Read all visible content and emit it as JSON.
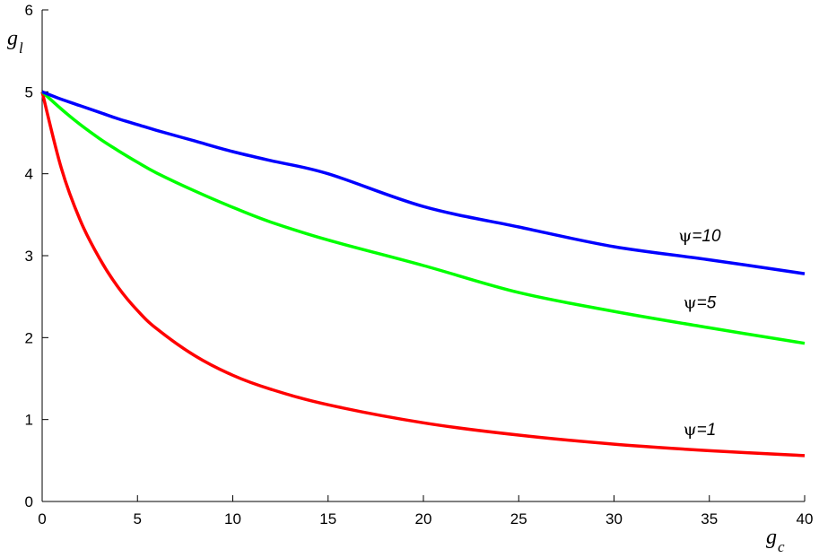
{
  "chart_data": {
    "type": "line",
    "xlabel": {
      "main": "g",
      "sub": "c"
    },
    "ylabel": {
      "main": "g",
      "sub": "l"
    },
    "xlim": [
      0,
      40
    ],
    "ylim": [
      0,
      6
    ],
    "xticks": [
      0,
      5,
      10,
      15,
      20,
      25,
      30,
      35,
      40
    ],
    "yticks": [
      0,
      1,
      2,
      3,
      4,
      5,
      6
    ],
    "grid": false,
    "legend": "none",
    "x": [
      0,
      1,
      2,
      3,
      4,
      5,
      6,
      8,
      10,
      12,
      15,
      20,
      25,
      30,
      35,
      40
    ],
    "series": [
      {
        "name": "ψ=1",
        "label_symbol": "ψ",
        "label_value": "=1",
        "color": "#ff0000",
        "values": [
          5.0,
          4.07,
          3.43,
          2.97,
          2.61,
          2.33,
          2.11,
          1.78,
          1.54,
          1.37,
          1.18,
          0.96,
          0.81,
          0.7,
          0.62,
          0.56
        ]
      },
      {
        "name": "ψ=5",
        "label_symbol": "ψ",
        "label_value": "=5",
        "color": "#00ff00",
        "values": [
          5.0,
          4.79,
          4.6,
          4.43,
          4.28,
          4.14,
          4.01,
          3.79,
          3.59,
          3.41,
          3.19,
          2.88,
          2.55,
          2.32,
          2.12,
          1.93
        ]
      },
      {
        "name": "ψ=10",
        "label_symbol": "ψ",
        "label_value": "=10",
        "color": "#0000ff",
        "values": [
          5.0,
          4.91,
          4.83,
          4.75,
          4.67,
          4.6,
          4.53,
          4.4,
          4.27,
          4.16,
          4.0,
          3.6,
          3.35,
          3.11,
          2.95,
          2.78
        ]
      }
    ]
  }
}
